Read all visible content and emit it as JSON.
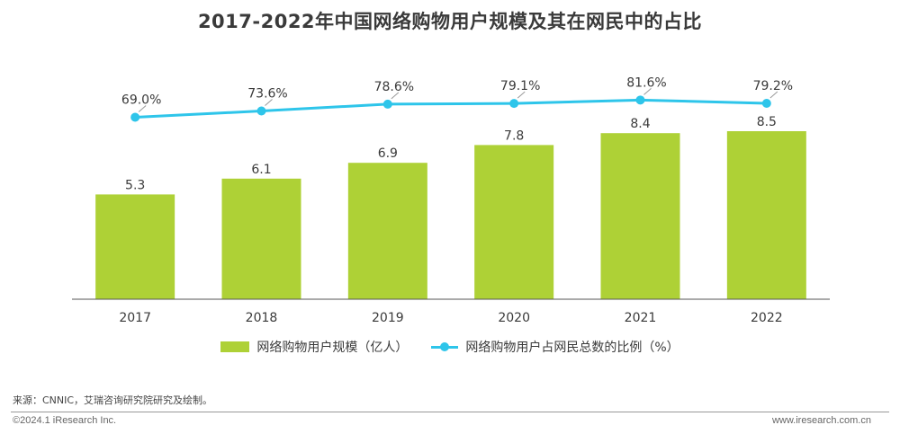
{
  "title": "2017-2022年中国网络购物用户规模及其在网民中的占比",
  "colors": {
    "bar": "#aed136",
    "line": "#2ec5ea"
  },
  "chart_data": {
    "type": "bar",
    "categories": [
      "2017",
      "2018",
      "2019",
      "2020",
      "2021",
      "2022"
    ],
    "series": [
      {
        "name": "网络购物用户规模（亿人）",
        "type": "bar",
        "values": [
          5.3,
          6.1,
          6.9,
          7.8,
          8.4,
          8.5
        ],
        "labels": [
          "5.3",
          "6.1",
          "6.9",
          "7.8",
          "8.4",
          "8.5"
        ]
      },
      {
        "name": "网络购物用户占网民总数的比例（%）",
        "type": "line",
        "values": [
          69.0,
          73.6,
          78.6,
          79.1,
          81.6,
          79.2
        ],
        "labels": [
          "69.0%",
          "73.6%",
          "78.6%",
          "79.1%",
          "81.6%",
          "79.2%"
        ]
      }
    ],
    "ylim": [
      0,
      9
    ],
    "y2lim": [
      0,
      100
    ],
    "grid": false,
    "legend": "bottom"
  },
  "source": "来源：CNNIC，艾瑞咨询研究院研究及绘制。",
  "footer": {
    "copyright": "©2024.1 iResearch Inc.",
    "website": "www.iresearch.com.cn"
  }
}
